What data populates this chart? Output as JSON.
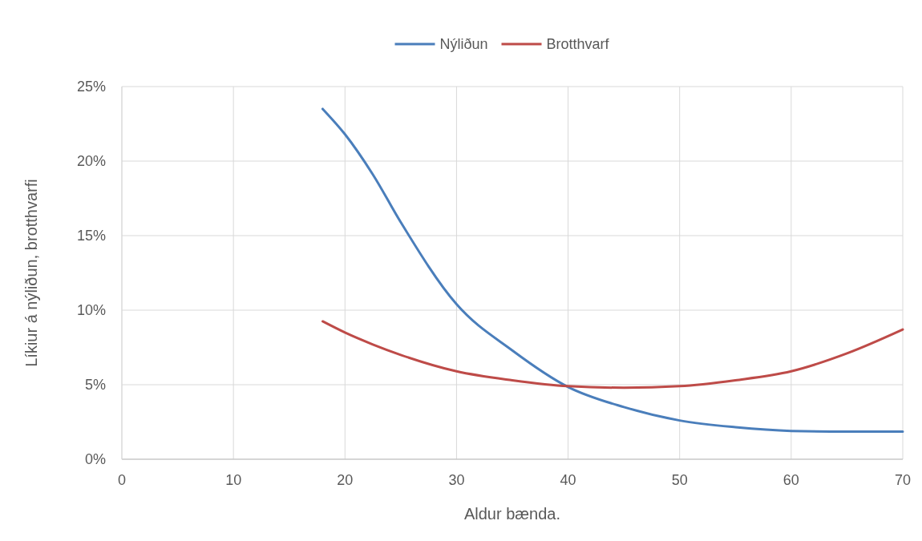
{
  "chart_data": {
    "type": "line",
    "xlabel": "Aldur bænda.",
    "ylabel": "Líkiur á nýliðun, brotthvarfi",
    "xlim": [
      0,
      70
    ],
    "xticks": [
      0,
      10,
      20,
      30,
      40,
      50,
      60,
      70
    ],
    "ylim": [
      0,
      25
    ],
    "yticks": [
      {
        "value": 0,
        "label": "0%"
      },
      {
        "value": 5,
        "label": "5%"
      },
      {
        "value": 10,
        "label": "10%"
      },
      {
        "value": 15,
        "label": "15%"
      },
      {
        "value": 20,
        "label": "20%"
      },
      {
        "value": 25,
        "label": "25%"
      }
    ],
    "grid": true,
    "legend": "top",
    "marker": "none",
    "line_style": "solid",
    "x": [
      18,
      20,
      22.5,
      25,
      30,
      35,
      40,
      45,
      50,
      55,
      60,
      65,
      70
    ],
    "series": [
      {
        "name": "Nýliðun",
        "color": "#4a7ebb",
        "values": [
          23.5,
          21.8,
          19.1,
          15.9,
          10.4,
          7.3,
          4.85,
          3.5,
          2.6,
          2.15,
          1.9,
          1.85,
          1.85
        ]
      },
      {
        "name": "Brotthvarf",
        "color": "#be4b48",
        "values": [
          9.25,
          8.5,
          7.7,
          7.0,
          5.9,
          5.3,
          4.9,
          4.8,
          4.9,
          5.3,
          5.9,
          7.1,
          8.7
        ]
      }
    ]
  }
}
